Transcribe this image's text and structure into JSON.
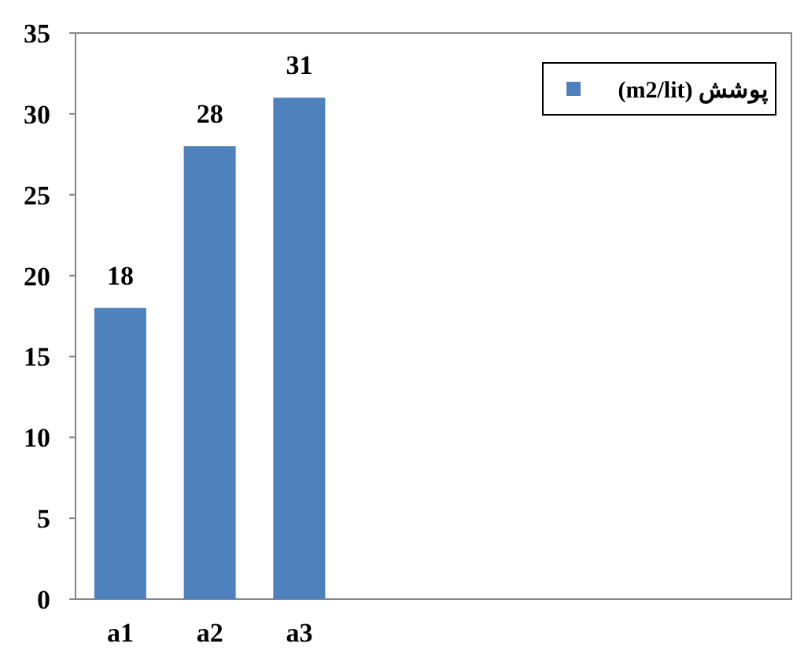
{
  "chart_data": {
    "type": "bar",
    "categories": [
      "a1",
      "a2",
      "a3",
      null,
      null,
      null,
      null,
      null
    ],
    "series": [
      {
        "name": "پوشش (m2/lit)",
        "color": "#4f81bd",
        "values": [
          18,
          28,
          31,
          null,
          null,
          null,
          null,
          null
        ]
      }
    ],
    "ylim": [
      0,
      35
    ],
    "yticks": [
      0,
      5,
      10,
      15,
      20,
      25,
      30,
      35
    ],
    "data_labels": true,
    "legend": "top right",
    "grid": false
  }
}
